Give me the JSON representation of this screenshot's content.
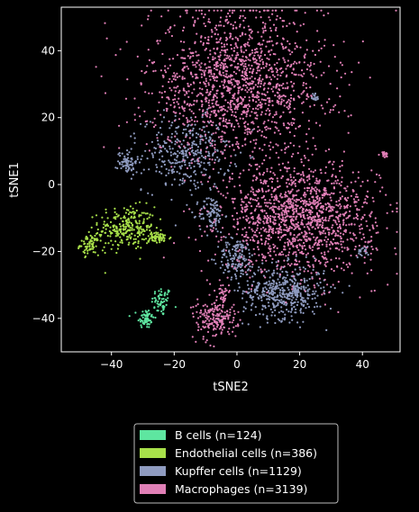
{
  "chart_data": {
    "type": "scatter",
    "title": "",
    "xlabel": "tSNE2",
    "ylabel": "tSNE1",
    "xlim": [
      -56,
      52
    ],
    "ylim": [
      -50,
      53
    ],
    "xticks": [
      -40,
      -20,
      0,
      20,
      40
    ],
    "yticks": [
      -40,
      -20,
      0,
      20,
      40
    ],
    "xtick_labels": [
      "−40",
      "−20",
      "0",
      "20",
      "40"
    ],
    "ytick_labels": [
      "−40",
      "−20",
      "0",
      "20",
      "40"
    ],
    "grid": false,
    "legend_position": "bottom-center",
    "background": "#000000",
    "series": [
      {
        "name": "B cells (n=124)",
        "color": "#5ee6a0",
        "clusters": [
          {
            "cx": -24,
            "cy": -35,
            "sx": 1.6,
            "sy": 2.2,
            "n": 60
          },
          {
            "cx": -29,
            "cy": -40,
            "sx": 1.3,
            "sy": 1.5,
            "n": 64
          }
        ]
      },
      {
        "name": "Endothelial cells (n=386)",
        "color": "#a8e04a",
        "clusters": [
          {
            "cx": -35,
            "cy": -13,
            "sx": 4.5,
            "sy": 3.2,
            "n": 260
          },
          {
            "cx": -47,
            "cy": -18,
            "sx": 1.5,
            "sy": 1.5,
            "n": 70
          },
          {
            "cx": -25,
            "cy": -16,
            "sx": 2.0,
            "sy": 0.8,
            "n": 56
          }
        ]
      },
      {
        "name": "Kupffer cells (n=1129)",
        "color": "#8f9bc0",
        "clusters": [
          {
            "cx": -16,
            "cy": 9,
            "sx": 7.0,
            "sy": 5.5,
            "n": 330
          },
          {
            "cx": -35,
            "cy": 7,
            "sx": 1.5,
            "sy": 2.0,
            "n": 70
          },
          {
            "cx": -8,
            "cy": -9,
            "sx": 2.0,
            "sy": 2.8,
            "n": 90
          },
          {
            "cx": 0,
            "cy": -22,
            "sx": 3.0,
            "sy": 3.0,
            "n": 140
          },
          {
            "cx": 15,
            "cy": -32,
            "sx": 6.5,
            "sy": 4.0,
            "n": 460
          },
          {
            "cx": 40,
            "cy": -20,
            "sx": 1.0,
            "sy": 0.8,
            "n": 21
          },
          {
            "cx": 25,
            "cy": 26,
            "sx": 0.6,
            "sy": 0.8,
            "n": 18
          }
        ]
      },
      {
        "name": "Macrophages (n=3139)",
        "color": "#e07fb6",
        "clusters": [
          {
            "cx": 0,
            "cy": 30,
            "sx": 14.0,
            "sy": 11.0,
            "n": 1500
          },
          {
            "cx": 20,
            "cy": -10,
            "sx": 12.0,
            "sy": 8.0,
            "n": 1400
          },
          {
            "cx": -7,
            "cy": -40,
            "sx": 3.5,
            "sy": 3.0,
            "n": 190
          },
          {
            "cx": -5,
            "cy": -33,
            "sx": 1.2,
            "sy": 2.0,
            "n": 30
          },
          {
            "cx": 47,
            "cy": 9,
            "sx": 0.6,
            "sy": 0.5,
            "n": 19
          }
        ]
      }
    ]
  }
}
